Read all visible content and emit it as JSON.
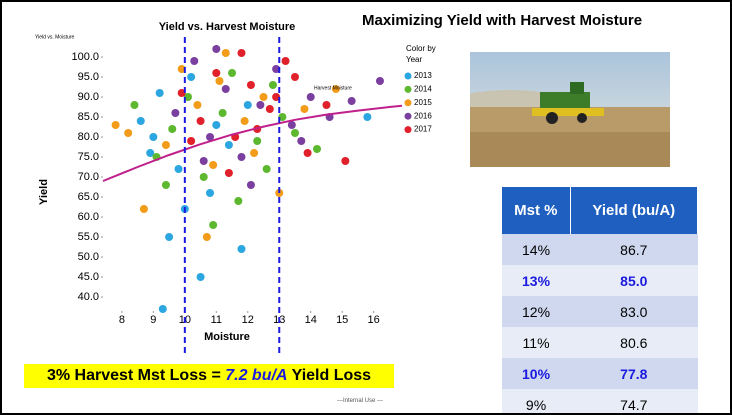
{
  "slide_title": "Maximizing Yield with Harvest Moisture",
  "chart_data": {
    "type": "scatter",
    "title": "Yield vs. Harvest Moisture",
    "corner_label": "Yield vs. Moisture",
    "x_label": "Moisture",
    "y_label": "Yield",
    "legend_title": [
      "Color by",
      "Year"
    ],
    "xlim": [
      7.4,
      16.9
    ],
    "ylim": [
      37,
      102
    ],
    "xticks": [
      8,
      9,
      10,
      11,
      12,
      13,
      14,
      15,
      16
    ],
    "yticks": [
      {
        "value": 40,
        "label": "40.0"
      },
      {
        "value": 45,
        "label": "45.0"
      },
      {
        "value": 50,
        "label": "50.0"
      },
      {
        "value": 55,
        "label": "55.0"
      },
      {
        "value": 60,
        "label": "60.0"
      },
      {
        "value": 65,
        "label": "65.0"
      },
      {
        "value": 70,
        "label": "70.0"
      },
      {
        "value": 75,
        "label": "75.0"
      },
      {
        "value": 80,
        "label": "80.0"
      },
      {
        "value": 85,
        "label": "85.0"
      },
      {
        "value": 90,
        "label": "90.0"
      },
      {
        "value": 95,
        "label": "95.0"
      },
      {
        "value": 100,
        "label": "100.0"
      }
    ],
    "reference_lines": [
      10,
      13
    ],
    "reference_color": "#1a1ae0",
    "series": [
      {
        "name": "2013",
        "color": "#2ba6e0",
        "x": [
          8.6,
          9.0,
          9.3,
          9.5,
          9.8,
          10.2,
          10.5,
          10.8,
          11.0,
          11.4,
          9.2,
          10.0,
          12.0,
          8.9,
          11.8,
          15.8
        ],
        "values": [
          84,
          80,
          37,
          55,
          72,
          95,
          45,
          66,
          83,
          78,
          91,
          62,
          88,
          76,
          52,
          85
        ]
      },
      {
        "name": "2014",
        "color": "#5cb82e",
        "x": [
          8.4,
          9.1,
          9.6,
          10.1,
          10.6,
          11.2,
          11.7,
          12.3,
          12.8,
          13.5,
          14.2,
          10.9,
          9.4,
          12.6,
          11.5,
          13.1
        ],
        "values": [
          88,
          75,
          82,
          90,
          70,
          86,
          64,
          79,
          93,
          81,
          77,
          58,
          68,
          72,
          96,
          85
        ]
      },
      {
        "name": "2015",
        "color": "#f39c1a",
        "x": [
          7.8,
          8.7,
          9.4,
          9.9,
          10.4,
          10.9,
          11.3,
          11.9,
          12.5,
          13.0,
          13.8,
          14.8,
          8.2,
          10.7,
          12.2,
          11.1
        ],
        "values": [
          83,
          62,
          78,
          97,
          88,
          73,
          101,
          84,
          90,
          66,
          87,
          92,
          81,
          55,
          76,
          94
        ]
      },
      {
        "name": "2016",
        "color": "#7b3fa0",
        "x": [
          9.7,
          10.3,
          10.8,
          11.3,
          11.8,
          12.4,
          12.9,
          13.4,
          14.0,
          14.6,
          15.3,
          16.2,
          11.0,
          12.1,
          10.6,
          13.7
        ],
        "values": [
          86,
          99,
          80,
          92,
          75,
          88,
          97,
          83,
          90,
          85,
          89,
          94,
          102,
          68,
          74,
          79
        ]
      },
      {
        "name": "2017",
        "color": "#e0202a",
        "x": [
          9.9,
          10.5,
          11.0,
          11.6,
          12.1,
          12.7,
          13.2,
          13.9,
          14.5,
          15.1,
          11.4,
          12.3,
          10.2,
          12.9,
          11.8,
          13.5
        ],
        "values": [
          91,
          84,
          96,
          80,
          93,
          87,
          99,
          76,
          88,
          74,
          71,
          82,
          79,
          90,
          101,
          95
        ]
      }
    ],
    "trend": {
      "name": "Harvest Moisture",
      "color": "#c0208c",
      "x": [
        7.4,
        8.5,
        9.5,
        10.5,
        11.5,
        12.5,
        13.5,
        14.5,
        15.5,
        16.5,
        16.9
      ],
      "values": [
        69,
        72.5,
        75.5,
        78.2,
        80.6,
        82.6,
        84.3,
        85.6,
        86.6,
        87.5,
        87.8
      ]
    }
  },
  "table": {
    "header": [
      "Mst %",
      "Yield (bu/A)"
    ],
    "highlight_color": "#1a1ae0",
    "rows": [
      {
        "cells": [
          "14%",
          "86.7"
        ],
        "highlight": false
      },
      {
        "cells": [
          "13%",
          "85.0"
        ],
        "highlight": true
      },
      {
        "cells": [
          "12%",
          "83.0"
        ],
        "highlight": false
      },
      {
        "cells": [
          "11%",
          "80.6"
        ],
        "highlight": false
      },
      {
        "cells": [
          "10%",
          "77.8"
        ],
        "highlight": true
      },
      {
        "cells": [
          "9%",
          "74.7"
        ],
        "highlight": false
      }
    ]
  },
  "caption": [
    "3% Harvest Mst Loss = ",
    "7.2 bu/A",
    " Yield Loss"
  ],
  "footer": "---Internal Use ---"
}
